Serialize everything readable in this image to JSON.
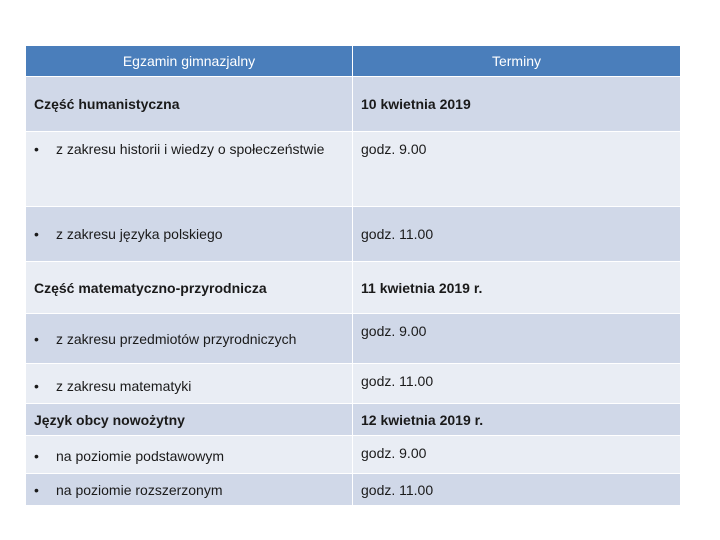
{
  "table": {
    "headers": [
      "Egzamin  gimnazjalny",
      "Terminy"
    ],
    "rows": [
      {
        "exam": "Część humanistyczna",
        "date": "10 kwietnia 2019"
      },
      {
        "exam": "z zakresu historii i wiedzy o społeczeństwie",
        "date": "godz. 9.00"
      },
      {
        "exam": "z zakresu języka polskiego",
        "date": "godz. 11.00"
      },
      {
        "exam": "Część matematyczno-przyrodnicza",
        "date": "11 kwietnia 2019 r."
      },
      {
        "exam": "z zakresu przedmiotów przyrodniczych",
        "date": "godz. 9.00"
      },
      {
        "exam": "z zakresu matematyki",
        "date": "godz. 11.00"
      },
      {
        "exam": "Język obcy nowożytny",
        "date": "12 kwietnia 2019 r."
      },
      {
        "exam": "na poziomie podstawowym",
        "date": "godz. 9.00"
      },
      {
        "exam": "na poziomie rozszerzonym",
        "date": "godz. 11.00"
      }
    ],
    "bullet": "•"
  }
}
